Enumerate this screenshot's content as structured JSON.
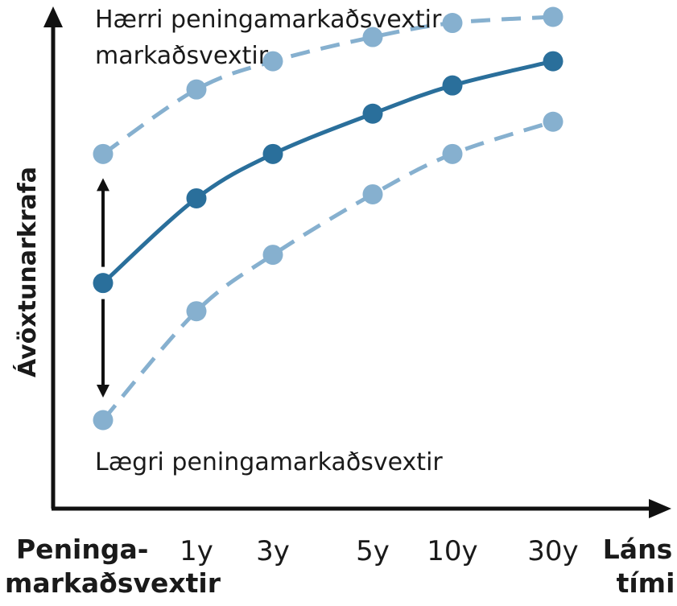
{
  "chart_data": {
    "type": "line",
    "title": "",
    "ylabel": "Ávöxtunarkrafa",
    "xlabel": [
      "Láns",
      "tími"
    ],
    "x_start_label": [
      "Peninga-",
      "markaðsvextir"
    ],
    "categories": [
      "Peninga-markaðsvextir",
      "1y",
      "3y",
      "5y",
      "10y",
      "30y"
    ],
    "tick_labels": [
      "1y",
      "3y",
      "5y",
      "10y",
      "30y"
    ],
    "x_numeric": [
      0,
      1,
      3,
      5,
      10,
      30
    ],
    "yticks_shown": false,
    "grid": false,
    "legend": "none",
    "series": [
      {
        "role": "higher",
        "style": "dashed",
        "color": "#86b0cf",
        "values": [
          0.66,
          0.82,
          0.89,
          0.95,
          0.985,
          1.0
        ]
      },
      {
        "role": "current",
        "style": "solid",
        "color": "#2a6f9b",
        "values": [
          0.34,
          0.55,
          0.66,
          0.76,
          0.83,
          0.89
        ]
      },
      {
        "role": "lower",
        "style": "dashed",
        "color": "#86b0cf",
        "values": [
          0.0,
          0.27,
          0.41,
          0.56,
          0.66,
          0.74
        ]
      }
    ],
    "annotations": {
      "higher": [
        "Hærri peningamarkaðsvextir",
        "markaðsvextir"
      ],
      "lower": "Lægri peningamarkaðsvextir"
    },
    "arrows": "double arrow up and down from the current money-market point"
  }
}
